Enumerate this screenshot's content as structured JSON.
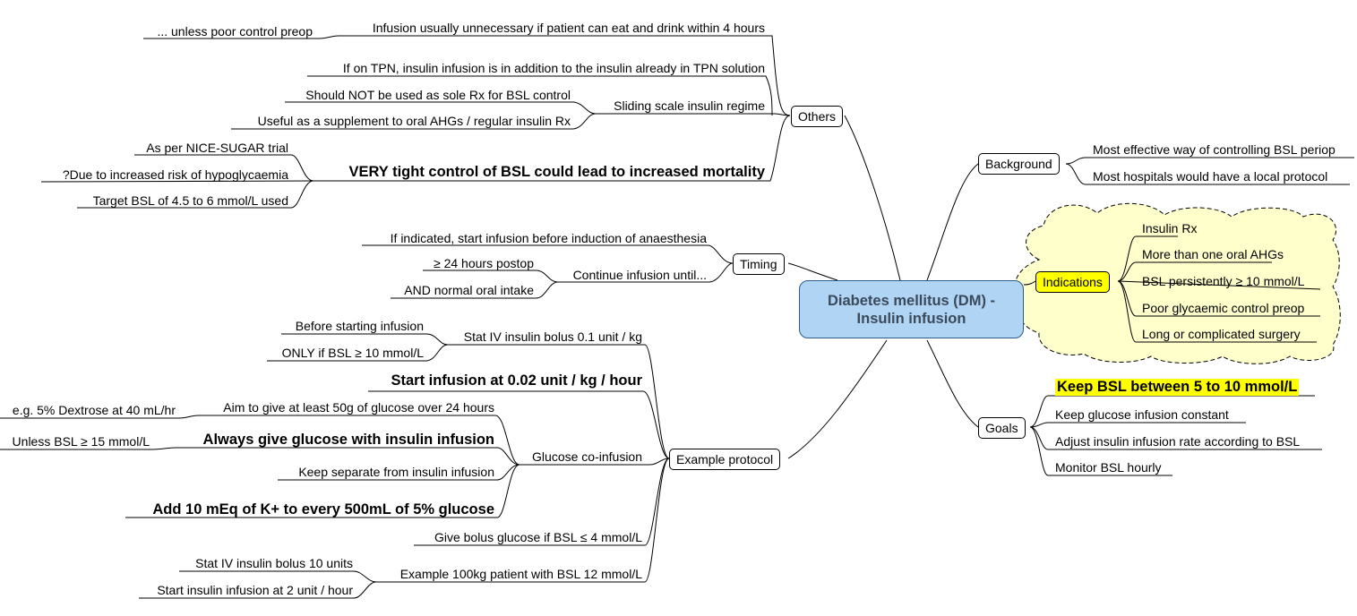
{
  "central": {
    "line1": "Diabetes mellitus (DM) -",
    "line2": "Insulin infusion"
  },
  "others": {
    "label": "Others",
    "infusion_unnecessary": "Infusion usually unnecessary if patient can eat and drink within 4 hours",
    "unless_poor_control": "... unless poor control preop",
    "tpn": "If on TPN, insulin infusion is in addition to the insulin already in TPN solution",
    "sliding_scale": "Sliding scale insulin regime",
    "sliding_not_sole": "Should NOT be used as sole Rx for BSL control",
    "sliding_supplement": "Useful as a supplement to oral AHGs / regular insulin Rx",
    "tight_control": "VERY tight control of BSL could lead to increased mortality",
    "nice_sugar": "As per NICE-SUGAR trial",
    "hypoglycaemia": "?Due to increased risk of hypoglycaemia",
    "target_bsl": "Target BSL of 4.5 to 6 mmol/L used"
  },
  "timing": {
    "label": "Timing",
    "start_before": "If indicated, start infusion before induction of anaesthesia",
    "continue_until": "Continue infusion until...",
    "hours_postop": "≥ 24 hours postop",
    "oral_intake": "AND normal oral intake"
  },
  "example": {
    "label": "Example protocol",
    "stat_bolus": "Stat IV insulin bolus 0.1 unit / kg",
    "before_starting": "Before starting infusion",
    "only_if": "ONLY if BSL ≥ 10 mmol/L",
    "start_infusion": "Start infusion at 0.02 unit / kg / hour",
    "glucose_coinfusion": "Glucose co-infusion",
    "aim_glucose": "Aim to give at least 50g of glucose over 24 hours",
    "dextrose": "e.g. 5% Dextrose at 40 mL/hr",
    "always_glucose": "Always give glucose with insulin infusion",
    "unless_bsl": "Unless BSL ≥ 15 mmol/L",
    "keep_separate": "Keep separate from insulin infusion",
    "add_k": "Add 10 mEq of K+ to every 500mL of 5% glucose",
    "bolus_glucose": "Give bolus glucose if BSL ≤ 4 mmol/L",
    "example_patient": "Example 100kg patient with BSL 12 mmol/L",
    "stat_10": "Stat IV insulin bolus 10 units",
    "start_2": "Start insulin infusion at 2 unit / hour"
  },
  "background": {
    "label": "Background",
    "items": [
      "Most effective way of controlling BSL periop",
      "Most hospitals would have a local protocol"
    ]
  },
  "indications": {
    "label": "Indications",
    "items": [
      "Insulin Rx",
      "More than one oral AHGs",
      "BSL persistently ≥ 10 mmol/L",
      "Poor glycaemic control preop",
      "Long or complicated surgery"
    ]
  },
  "goals": {
    "label": "Goals",
    "items": [
      "Keep BSL between 5 to 10 mmol/L",
      "Keep glucose infusion constant",
      "Adjust insulin infusion rate according to BSL",
      "Monitor BSL hourly"
    ]
  },
  "colors": {
    "central_fill": "#b0d4f4",
    "cloud_fill": "#ffffcc",
    "highlight": "#ffff00"
  }
}
